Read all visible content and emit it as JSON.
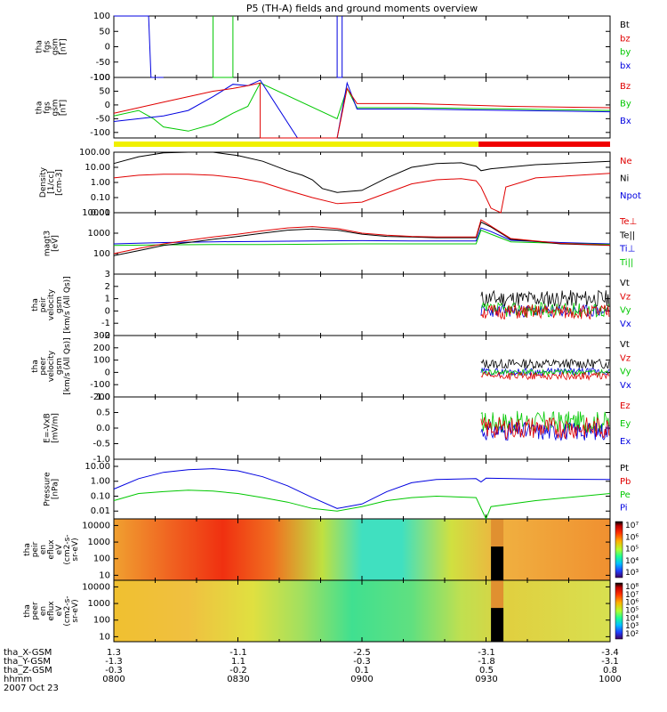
{
  "title": "P5 (TH-A) fields and ground moments overview",
  "date_label": "2007 Oct 23",
  "footer": {
    "rows": [
      {
        "label": "tha_X-GSM",
        "values": [
          "1.3",
          "-1.1",
          "-2.5",
          "-3.1",
          "-3.4"
        ]
      },
      {
        "label": "tha_Y-GSM",
        "values": [
          "-1.3",
          "1.1",
          "-0.3",
          "-1.8",
          "-3.1"
        ]
      },
      {
        "label": "tha_Z-GSM",
        "values": [
          "-0.3",
          "-0.2",
          "0.1",
          "0.5",
          "0.8"
        ]
      },
      {
        "label": "hhmm",
        "values": [
          "0800",
          "0830",
          "0900",
          "0930",
          "1000"
        ]
      }
    ]
  },
  "chart_data": {
    "type": "line",
    "x_range_hhmm": [
      "0800",
      "1000"
    ],
    "x_ticks": [
      "0800",
      "0830",
      "0900",
      "0930",
      "1000"
    ],
    "panels": [
      {
        "ylabel": [
          "tha",
          "fgs",
          "gsm",
          "[nT]"
        ],
        "ylim": [
          -100,
          100
        ],
        "scale": "linear",
        "ticks": [
          "100",
          "50",
          "0",
          "-50",
          "-100"
        ],
        "legend": [
          {
            "text": "Bt",
            "color": "#000000"
          },
          {
            "text": "bz",
            "color": "#e00000"
          },
          {
            "text": "by",
            "color": "#00c800"
          },
          {
            "text": "bx",
            "color": "#0000e0"
          }
        ]
      },
      {
        "ylabel": [
          "tha",
          "fgs",
          "gsm",
          "[nT]"
        ],
        "ylim": [
          -120,
          100
        ],
        "scale": "linear",
        "ticks": [
          "100",
          "50",
          "0",
          "-50",
          "-100"
        ],
        "legend": [
          {
            "text": "Bz",
            "color": "#e00000"
          },
          {
            "text": "By",
            "color": "#00c800"
          },
          {
            "text": "Bx",
            "color": "#0000e0"
          }
        ]
      },
      {
        "ylabel": [
          "Density",
          "[1/cc]",
          "[cm-3]"
        ],
        "ylim": [
          0.01,
          100
        ],
        "scale": "log",
        "ticks": [
          "100.00",
          "10.00",
          "1.00",
          "0.10",
          "0.01"
        ],
        "legend": [
          {
            "text": "Ne",
            "color": "#e00000"
          },
          {
            "text": "Ni",
            "color": "#000000"
          },
          {
            "text": "Npot",
            "color": "#0000e0"
          }
        ]
      },
      {
        "ylabel": [
          "magt3",
          "[eV]"
        ],
        "ylim": [
          10,
          10000
        ],
        "scale": "log",
        "ticks": [
          "10000",
          "1000",
          "100"
        ],
        "legend": [
          {
            "text": "Te⊥",
            "color": "#e00000"
          },
          {
            "text": "Te||",
            "color": "#000000"
          },
          {
            "text": "Ti⊥",
            "color": "#0000e0"
          },
          {
            "text": "Ti||",
            "color": "#00c800"
          }
        ]
      },
      {
        "ylabel": [
          "tha",
          "peir",
          "velocity",
          "gsm",
          "[km/s (All Qs)]"
        ],
        "ylim": [
          -2,
          3
        ],
        "scale": "linear",
        "ticks": [
          "3",
          "2",
          "1",
          "0",
          "-1",
          "-2"
        ],
        "legend": [
          {
            "text": "Vt",
            "color": "#000000"
          },
          {
            "text": "Vz",
            "color": "#e00000"
          },
          {
            "text": "Vy",
            "color": "#00c800"
          },
          {
            "text": "Vx",
            "color": "#0000e0"
          }
        ]
      },
      {
        "ylabel": [
          "tha",
          "peer",
          "velocity",
          "gsm",
          "[km/s (All Qs)]"
        ],
        "ylim": [
          -200,
          300
        ],
        "scale": "linear",
        "ticks": [
          "300",
          "200",
          "100",
          "0",
          "-100",
          "-200"
        ],
        "legend": [
          {
            "text": "Vt",
            "color": "#000000"
          },
          {
            "text": "Vz",
            "color": "#e00000"
          },
          {
            "text": "Vy",
            "color": "#00c800"
          },
          {
            "text": "Vx",
            "color": "#0000e0"
          }
        ]
      },
      {
        "ylabel": [
          "E=-VxB",
          "[mV/m]"
        ],
        "ylim": [
          -1,
          1
        ],
        "scale": "linear",
        "ticks": [
          "1.0",
          "0.5",
          "0.0",
          "-0.5",
          "-1.0"
        ],
        "legend": [
          {
            "text": "Ez",
            "color": "#e00000"
          },
          {
            "text": "Ey",
            "color": "#00c800"
          },
          {
            "text": "Ex",
            "color": "#0000e0"
          }
        ]
      },
      {
        "ylabel": [
          "Pressure",
          "[nPa]"
        ],
        "ylim": [
          0.003,
          30
        ],
        "scale": "log",
        "ticks": [
          "10.00",
          "1.00",
          "0.10",
          "0.01"
        ],
        "legend": [
          {
            "text": "Pt",
            "color": "#000000"
          },
          {
            "text": "Pb",
            "color": "#e00000"
          },
          {
            "text": "Pe",
            "color": "#00c800"
          },
          {
            "text": "Pi",
            "color": "#0000e0"
          }
        ]
      },
      {
        "ylabel": [
          "tha",
          "peir",
          "en",
          "eflux",
          "eV",
          "(cm2-s-",
          "sr-eV)"
        ],
        "ylim": [
          5,
          25000
        ],
        "scale": "log",
        "ticks": [
          "10000",
          "1000",
          "100",
          "10"
        ],
        "type": "heatmap",
        "colorbar": [
          "10⁷",
          "10⁶",
          "10⁵",
          "10⁴",
          "10³"
        ]
      },
      {
        "ylabel": [
          "tha",
          "peer",
          "en",
          "eflux",
          "eV",
          "(cm2-s-",
          "sr-eV)"
        ],
        "ylim": [
          5,
          25000
        ],
        "scale": "log",
        "ticks": [
          "10000",
          "1000",
          "100",
          "10"
        ],
        "type": "heatmap",
        "colorbar": [
          "10⁸",
          "10⁷",
          "10⁶",
          "10⁵",
          "10⁴",
          "10³",
          "10²"
        ]
      }
    ],
    "series": {
      "p1_bx": [
        [
          0.0,
          100
        ],
        [
          0.07,
          100
        ],
        [
          0.075,
          -100
        ],
        [
          0.1,
          -100
        ]
      ],
      "p1_by": [
        [
          0.2,
          100
        ],
        [
          0.2,
          -100
        ],
        [
          0.24,
          -100
        ],
        [
          0.24,
          100
        ]
      ],
      "p1_bz": [
        [
          0.45,
          100
        ],
        [
          0.45,
          -100
        ],
        [
          0.46,
          -100
        ],
        [
          0.46,
          100
        ]
      ],
      "p2_bz": [
        [
          0,
          -30
        ],
        [
          0.05,
          -10
        ],
        [
          0.1,
          10
        ],
        [
          0.15,
          30
        ],
        [
          0.2,
          50
        ],
        [
          0.24,
          60
        ],
        [
          0.27,
          70
        ],
        [
          0.295,
          80
        ],
        [
          0.295,
          -120
        ],
        [
          0.3,
          -120
        ],
        [
          0.45,
          -120
        ],
        [
          0.47,
          60
        ],
        [
          0.49,
          5
        ],
        [
          0.6,
          5
        ],
        [
          0.8,
          -5
        ],
        [
          1.0,
          -10
        ]
      ],
      "p2_by": [
        [
          0,
          -40
        ],
        [
          0.05,
          -20
        ],
        [
          0.08,
          -50
        ],
        [
          0.1,
          -80
        ],
        [
          0.15,
          -95
        ],
        [
          0.2,
          -70
        ],
        [
          0.24,
          -30
        ],
        [
          0.27,
          -5
        ],
        [
          0.295,
          80
        ],
        [
          0.45,
          -50
        ],
        [
          0.47,
          60
        ],
        [
          0.49,
          -10
        ],
        [
          0.6,
          -10
        ],
        [
          0.8,
          -15
        ],
        [
          1.0,
          -20
        ]
      ],
      "p2_bx": [
        [
          0,
          -60
        ],
        [
          0.05,
          -50
        ],
        [
          0.1,
          -40
        ],
        [
          0.15,
          -20
        ],
        [
          0.2,
          30
        ],
        [
          0.24,
          75
        ],
        [
          0.27,
          70
        ],
        [
          0.295,
          90
        ],
        [
          0.37,
          -120
        ],
        [
          0.45,
          -120
        ],
        [
          0.47,
          80
        ],
        [
          0.49,
          -15
        ],
        [
          0.6,
          -15
        ],
        [
          0.8,
          -20
        ],
        [
          1.0,
          -25
        ]
      ],
      "p3_ni": [
        [
          0,
          18
        ],
        [
          0.05,
          50
        ],
        [
          0.1,
          90
        ],
        [
          0.15,
          110
        ],
        [
          0.2,
          100
        ],
        [
          0.25,
          60
        ],
        [
          0.3,
          25
        ],
        [
          0.35,
          6
        ],
        [
          0.38,
          3
        ],
        [
          0.4,
          1.5
        ],
        [
          0.42,
          0.4
        ],
        [
          0.45,
          0.22
        ],
        [
          0.5,
          0.3
        ],
        [
          0.55,
          2
        ],
        [
          0.6,
          10
        ],
        [
          0.65,
          18
        ],
        [
          0.7,
          20
        ],
        [
          0.73,
          12
        ],
        [
          0.74,
          6
        ],
        [
          0.76,
          8
        ],
        [
          0.85,
          15
        ],
        [
          1.0,
          25
        ]
      ],
      "p3_ne": [
        [
          0,
          2
        ],
        [
          0.05,
          3
        ],
        [
          0.1,
          3.5
        ],
        [
          0.15,
          3.5
        ],
        [
          0.2,
          3
        ],
        [
          0.25,
          2
        ],
        [
          0.3,
          1
        ],
        [
          0.35,
          0.3
        ],
        [
          0.4,
          0.1
        ],
        [
          0.45,
          0.04
        ],
        [
          0.5,
          0.05
        ],
        [
          0.55,
          0.2
        ],
        [
          0.6,
          0.8
        ],
        [
          0.65,
          1.5
        ],
        [
          0.7,
          1.8
        ],
        [
          0.73,
          1.3
        ],
        [
          0.74,
          0.5
        ],
        [
          0.76,
          0.02
        ],
        [
          0.78,
          0.01
        ],
        [
          0.79,
          0.5
        ],
        [
          0.85,
          2
        ],
        [
          1.0,
          4
        ]
      ],
      "p4_tepar": [
        [
          0,
          80
        ],
        [
          0.05,
          140
        ],
        [
          0.1,
          250
        ],
        [
          0.15,
          350
        ],
        [
          0.2,
          500
        ],
        [
          0.25,
          700
        ],
        [
          0.3,
          1000
        ],
        [
          0.35,
          1400
        ],
        [
          0.4,
          1600
        ],
        [
          0.45,
          1400
        ],
        [
          0.5,
          900
        ],
        [
          0.55,
          700
        ],
        [
          0.6,
          650
        ],
        [
          0.65,
          600
        ],
        [
          0.73,
          600
        ],
        [
          0.74,
          3500
        ],
        [
          0.76,
          2000
        ],
        [
          0.8,
          500
        ],
        [
          0.85,
          400
        ],
        [
          0.9,
          300
        ],
        [
          1.0,
          250
        ]
      ],
      "p4_teperp": [
        [
          0,
          100
        ],
        [
          0.05,
          180
        ],
        [
          0.1,
          300
        ],
        [
          0.15,
          450
        ],
        [
          0.2,
          650
        ],
        [
          0.25,
          900
        ],
        [
          0.3,
          1300
        ],
        [
          0.35,
          1800
        ],
        [
          0.4,
          2100
        ],
        [
          0.45,
          1700
        ],
        [
          0.5,
          1000
        ],
        [
          0.55,
          800
        ],
        [
          0.6,
          700
        ],
        [
          0.65,
          650
        ],
        [
          0.73,
          650
        ],
        [
          0.74,
          4500
        ],
        [
          0.76,
          2200
        ],
        [
          0.8,
          550
        ],
        [
          0.85,
          420
        ],
        [
          0.9,
          320
        ],
        [
          1.0,
          260
        ]
      ],
      "p4_tiperp": [
        [
          0,
          300
        ],
        [
          0.1,
          350
        ],
        [
          0.2,
          380
        ],
        [
          0.3,
          400
        ],
        [
          0.4,
          420
        ],
        [
          0.5,
          430
        ],
        [
          0.6,
          420
        ],
        [
          0.73,
          420
        ],
        [
          0.74,
          1800
        ],
        [
          0.76,
          1200
        ],
        [
          0.8,
          450
        ],
        [
          0.9,
          350
        ],
        [
          1.0,
          300
        ]
      ],
      "p4_tipar": [
        [
          0,
          250
        ],
        [
          0.1,
          270
        ],
        [
          0.2,
          280
        ],
        [
          0.3,
          280
        ],
        [
          0.4,
          290
        ],
        [
          0.5,
          300
        ],
        [
          0.6,
          300
        ],
        [
          0.73,
          300
        ],
        [
          0.74,
          1400
        ],
        [
          0.76,
          900
        ],
        [
          0.8,
          380
        ],
        [
          0.9,
          320
        ],
        [
          1.0,
          280
        ]
      ],
      "p8_pi": [
        [
          0,
          0.3
        ],
        [
          0.05,
          1.5
        ],
        [
          0.1,
          4
        ],
        [
          0.15,
          6
        ],
        [
          0.2,
          7
        ],
        [
          0.25,
          5
        ],
        [
          0.3,
          2
        ],
        [
          0.35,
          0.5
        ],
        [
          0.4,
          0.08
        ],
        [
          0.45,
          0.015
        ],
        [
          0.5,
          0.03
        ],
        [
          0.55,
          0.2
        ],
        [
          0.6,
          0.8
        ],
        [
          0.65,
          1.3
        ],
        [
          0.73,
          1.5
        ],
        [
          0.74,
          0.9
        ],
        [
          0.75,
          1.6
        ],
        [
          0.85,
          1.4
        ],
        [
          1.0,
          1.3
        ]
      ],
      "p8_pe": [
        [
          0,
          0.05
        ],
        [
          0.05,
          0.15
        ],
        [
          0.1,
          0.2
        ],
        [
          0.15,
          0.25
        ],
        [
          0.2,
          0.22
        ],
        [
          0.25,
          0.15
        ],
        [
          0.3,
          0.08
        ],
        [
          0.35,
          0.04
        ],
        [
          0.4,
          0.015
        ],
        [
          0.45,
          0.01
        ],
        [
          0.5,
          0.02
        ],
        [
          0.55,
          0.05
        ],
        [
          0.6,
          0.08
        ],
        [
          0.65,
          0.1
        ],
        [
          0.73,
          0.08
        ],
        [
          0.75,
          0.003
        ],
        [
          0.76,
          0.02
        ],
        [
          0.85,
          0.05
        ],
        [
          1.0,
          0.15
        ]
      ]
    }
  }
}
